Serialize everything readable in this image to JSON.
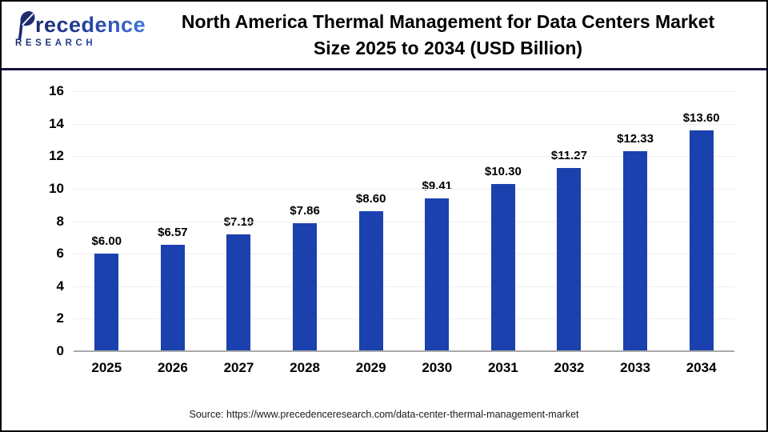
{
  "logo": {
    "name": "Precedence",
    "subname": "RESEARCH"
  },
  "header": {
    "title_line1": "North America Thermal Management for Data Centers Market",
    "title_line2": "Size 2025 to 2034 (USD Billion)"
  },
  "footer": {
    "source": "Source: https://www.precedenceresearch.com/data-center-thermal-management-market"
  },
  "colors": {
    "bar": "#1a41ae",
    "header_rule": "#15153d",
    "gridline": "#f0eeee",
    "baseline": "#a9a9a9",
    "logo_navy": "#1d2b6e",
    "logo_blue": "#3f74da"
  },
  "chart_data": {
    "type": "bar",
    "title": "North America Thermal Management for Data Centers Market Size 2025 to 2034 (USD Billion)",
    "categories": [
      "2025",
      "2026",
      "2027",
      "2028",
      "2029",
      "2030",
      "2031",
      "2032",
      "2033",
      "2034"
    ],
    "values": [
      6.0,
      6.57,
      7.19,
      7.86,
      8.6,
      9.41,
      10.3,
      11.27,
      12.33,
      13.6
    ],
    "value_labels": [
      "$6.00",
      "$6.57",
      "$7.19",
      "$7.86",
      "$8.60",
      "$9.41",
      "$10.30",
      "$11.27",
      "$12.33",
      "$13.60"
    ],
    "xlabel": "",
    "ylabel": "",
    "ylim": [
      0,
      16
    ],
    "yticks": [
      0,
      2,
      4,
      6,
      8,
      10,
      12,
      14,
      16
    ],
    "grid": true,
    "legend": false,
    "unit": "USD Billion"
  }
}
